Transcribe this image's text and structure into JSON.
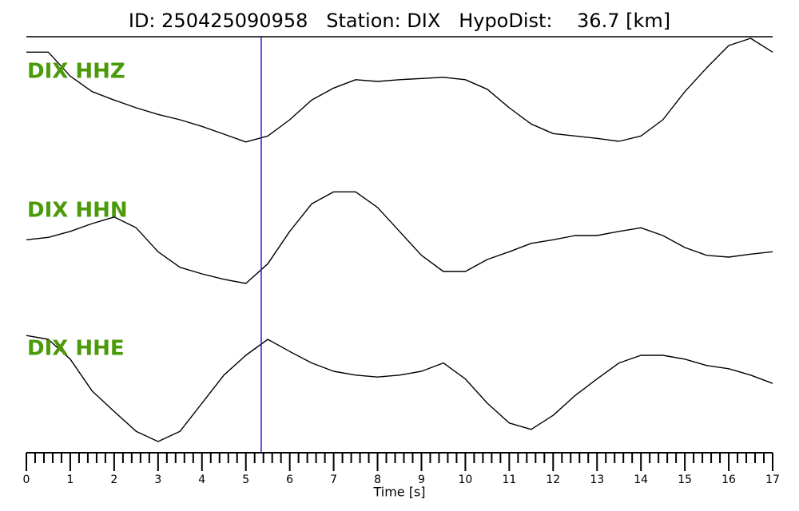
{
  "chart_data": {
    "type": "line",
    "title": "ID: 250425090958   Station: DIX   HypoDist:    36.7 [km]",
    "x_label": "Time [s]",
    "x": [
      0,
      0.5,
      1,
      1.5,
      2,
      2.5,
      3,
      3.5,
      4,
      4.5,
      5,
      5.5,
      6,
      6.5,
      7,
      7.5,
      8,
      8.5,
      9,
      9.5,
      10,
      10.5,
      11,
      11.5,
      12,
      12.5,
      13,
      13.5,
      14,
      14.5,
      15,
      15.5,
      16,
      16.5,
      17
    ],
    "xlim": [
      0,
      17
    ],
    "ylim": [
      -1,
      1
    ],
    "xticks": [
      0,
      1,
      2,
      3,
      4,
      5,
      6,
      7,
      8,
      9,
      10,
      11,
      12,
      13,
      14,
      15,
      16,
      17
    ],
    "xminorticks": [
      0.2,
      0.4,
      0.6,
      0.8,
      1.2,
      1.4,
      1.6,
      1.8,
      2.2,
      2.4,
      2.6,
      2.8,
      3.2,
      3.4,
      3.6,
      3.8,
      4.2,
      4.4,
      4.6,
      4.8,
      5.2,
      5.4,
      5.6,
      5.8,
      6.2,
      6.4,
      6.6,
      6.8,
      7.2,
      7.4,
      7.6,
      7.8,
      8.2,
      8.4,
      8.6,
      8.8,
      9.2,
      9.4,
      9.6,
      9.8,
      10.2,
      10.4,
      10.6,
      10.8,
      11.2,
      11.4,
      11.6,
      11.8,
      12.2,
      12.4,
      12.6,
      12.8,
      13.2,
      13.4,
      13.6,
      13.8,
      14.2,
      14.4,
      14.6,
      14.8,
      15.2,
      15.4,
      15.6,
      15.8,
      16.2,
      16.4,
      16.6,
      16.8
    ],
    "pick_time": 5.35,
    "pick_color": "#1a1adb",
    "label_color": "#4a9a0a",
    "series": [
      {
        "name": "DIX HHZ",
        "color": "#000000",
        "values": [
          0.73,
          0.73,
          0.33,
          0.07,
          -0.07,
          -0.2,
          -0.31,
          -0.4,
          -0.51,
          -0.64,
          -0.77,
          -0.67,
          -0.4,
          -0.07,
          0.13,
          0.27,
          0.24,
          0.27,
          0.29,
          0.31,
          0.27,
          0.11,
          -0.2,
          -0.47,
          -0.63,
          -0.67,
          -0.71,
          -0.76,
          -0.67,
          -0.4,
          0.07,
          0.47,
          0.84,
          0.96,
          0.73
        ]
      },
      {
        "name": "DIX HHN",
        "color": "#000000",
        "values": [
          -0.07,
          -0.03,
          0.07,
          0.2,
          0.31,
          0.13,
          -0.27,
          -0.53,
          -0.64,
          -0.73,
          -0.8,
          -0.47,
          0.07,
          0.53,
          0.73,
          0.73,
          0.47,
          0.07,
          -0.33,
          -0.6,
          -0.6,
          -0.4,
          -0.27,
          -0.13,
          -0.07,
          0,
          0,
          0.07,
          0.13,
          0,
          -0.2,
          -0.33,
          -0.36,
          -0.31,
          -0.27
        ]
      },
      {
        "name": "DIX HHE",
        "color": "#000000",
        "values": [
          0.81,
          0.75,
          0.44,
          -0.06,
          -0.38,
          -0.69,
          -0.85,
          -0.69,
          -0.25,
          0.19,
          0.5,
          0.75,
          0.56,
          0.38,
          0.25,
          0.19,
          0.16,
          0.19,
          0.25,
          0.38,
          0.13,
          -0.25,
          -0.56,
          -0.66,
          -0.44,
          -0.13,
          0.13,
          0.38,
          0.5,
          0.5,
          0.44,
          0.34,
          0.29,
          0.19,
          0.06
        ]
      }
    ]
  }
}
